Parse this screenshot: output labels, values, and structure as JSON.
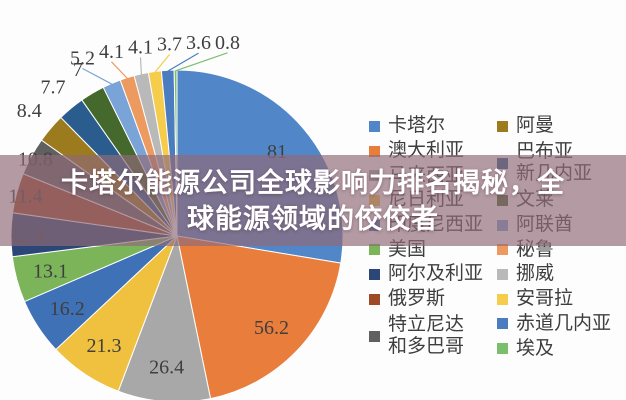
{
  "page": {
    "background": "#fdfdfd"
  },
  "overlay": {
    "line1": "卡塔尔能源公司全球影响力排名揭秘，全",
    "line2": "球能源领域的佼佼者",
    "text_color": "#ffffff",
    "band_color": "rgba(143,106,120,0.68)"
  },
  "chart_data": {
    "type": "pie",
    "legend_position": "right",
    "legend_columns": 2,
    "label_color": "#3f3f3f",
    "series": [
      {
        "label": "卡塔尔",
        "value": 81,
        "color": "#5187C8"
      },
      {
        "label": "澳大利亚",
        "value": 56.2,
        "color": "#E87D3C"
      },
      {
        "label": "马来西亚",
        "value": 26.4,
        "color": "#A8A8A8"
      },
      {
        "label": "尼日利亚",
        "value": 21.3,
        "color": "#F0C13F"
      },
      {
        "label": "印度尼西亚",
        "value": 16.2,
        "color": "#3E71B5"
      },
      {
        "label": "美国",
        "value": 13.1,
        "color": "#7CB45A"
      },
      {
        "label": "阿尔及利亚",
        "value": 12.4,
        "color": "#2B4778"
      },
      {
        "label": "俄罗斯",
        "value": 11.4,
        "color": "#9E4A26"
      },
      {
        "label": "特立尼达\n和多巴哥",
        "value": 10.8,
        "color": "#606060"
      },
      {
        "label": "阿曼",
        "value": 8.4,
        "color": "#9C7A1E"
      },
      {
        "label": "巴布亚\n新几内亚",
        "value": 7.7,
        "color": "#2A5D8E"
      },
      {
        "label": "文莱",
        "value": 7,
        "color": "#45682C"
      },
      {
        "label": "阿联酋",
        "value": 5.2,
        "color": "#7AA3D8"
      },
      {
        "label": "秘鲁",
        "value": 4.1,
        "color": "#ED9A61"
      },
      {
        "label": "挪威",
        "value": 4.1,
        "color": "#B9B9B9"
      },
      {
        "label": "安哥拉",
        "value": 3.7,
        "color": "#F5CC4C"
      },
      {
        "label": "赤道几内亚",
        "value": 3.6,
        "color": "#4B7CC0"
      },
      {
        "label": "埃及",
        "value": 0.8,
        "color": "#7BBE6E"
      }
    ]
  }
}
